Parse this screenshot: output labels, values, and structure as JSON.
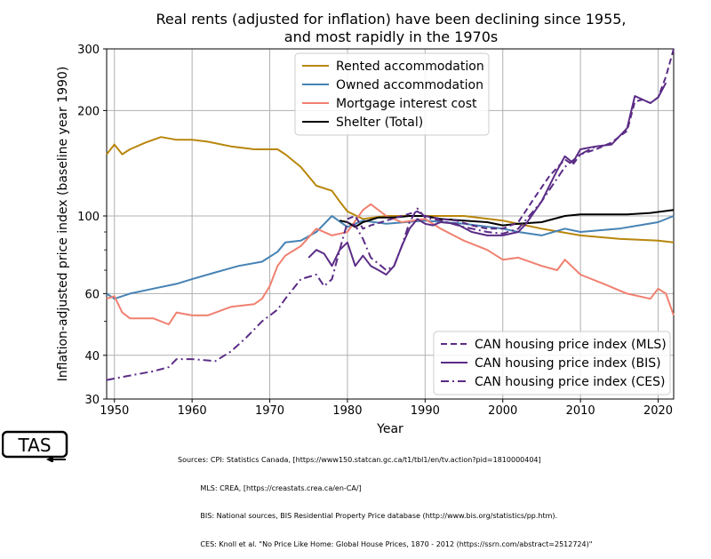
{
  "title_line1": "Real rents (adjusted for inflation) have been declining since 1955,",
  "title_line2": "and most rapidly in the 1970s",
  "logo_text": "TAS",
  "sources": [
    "Sources: CPI: Statistics Canada, [https://www150.statcan.gc.ca/t1/tbl1/en/tv.action?pid=1810000404]",
    "          MLS: CREA, [https://creastats.crea.ca/en-CA/]",
    "          BIS: National sources, BIS Residential Property Price database (http://www.bis.org/statistics/pp.htm).",
    "          CES: Knoll et al. \"No Price Like Home: Global House Prices, 1870 - 2012 (https://ssrn.com/abstract=2512724)\""
  ],
  "chart_data": {
    "type": "line",
    "xlabel": "Year",
    "ylabel": "Inflation-adjusted price index (baseline year 1990)",
    "xlim": [
      1949,
      2022
    ],
    "ylim": [
      30,
      300
    ],
    "yscale": "log",
    "xticks": [
      1950,
      1960,
      1970,
      1980,
      1990,
      2000,
      2010,
      2020
    ],
    "yticks": [
      30,
      40,
      60,
      100,
      200,
      300
    ],
    "grid": true,
    "legend_top": "top-center",
    "legend_bottom": "bottom-right",
    "series": [
      {
        "name": "Rented accommodation",
        "color": "#b8860b",
        "style": "solid",
        "legend": "top",
        "x": [
          1949,
          1950,
          1951,
          1952,
          1954,
          1956,
          1958,
          1960,
          1962,
          1965,
          1968,
          1971,
          1972,
          1974,
          1976,
          1978,
          1979,
          1980,
          1982,
          1985,
          1990,
          1995,
          2000,
          2005,
          2010,
          2015,
          2020,
          2022
        ],
        "y": [
          150,
          160,
          150,
          155,
          162,
          168,
          165,
          165,
          163,
          158,
          155,
          155,
          150,
          138,
          122,
          118,
          110,
          103,
          98,
          100,
          100,
          100,
          97,
          92,
          88,
          86,
          85,
          84
        ]
      },
      {
        "name": "Owned accommodation",
        "color": "#4682b4",
        "style": "solid",
        "legend": "top",
        "x": [
          1949,
          1950,
          1952,
          1955,
          1958,
          1960,
          1963,
          1966,
          1969,
          1971,
          1972,
          1974,
          1976,
          1978,
          1980,
          1982,
          1985,
          1990,
          1995,
          2000,
          2002,
          2005,
          2008,
          2010,
          2015,
          2020,
          2022
        ],
        "y": [
          60,
          58,
          60,
          62,
          64,
          66,
          69,
          72,
          74,
          79,
          84,
          85,
          90,
          100,
          93,
          97,
          95,
          97,
          95,
          92,
          90,
          88,
          92,
          90,
          92,
          96,
          100
        ]
      },
      {
        "name": "Mortgage interest cost",
        "color": "#f08070",
        "style": "solid",
        "legend": "top",
        "x": [
          1949,
          1950,
          1951,
          1952,
          1955,
          1957,
          1958,
          1960,
          1962,
          1965,
          1968,
          1969,
          1970,
          1971,
          1972,
          1974,
          1976,
          1978,
          1980,
          1982,
          1983,
          1985,
          1987,
          1990,
          1992,
          1995,
          1998,
          2000,
          2002,
          2005,
          2007,
          2008,
          2010,
          2013,
          2016,
          2019,
          2020,
          2021,
          2022
        ],
        "y": [
          58,
          59,
          53,
          51,
          51,
          49,
          53,
          52,
          52,
          55,
          56,
          58,
          63,
          72,
          77,
          82,
          92,
          88,
          90,
          104,
          108,
          100,
          96,
          98,
          92,
          85,
          80,
          75,
          76,
          72,
          70,
          75,
          68,
          64,
          60,
          58,
          62,
          60,
          52
        ]
      },
      {
        "name": "Shelter (Total)",
        "color": "#000000",
        "style": "solid",
        "legend": "top",
        "x": [
          1979,
          1980,
          1981,
          1982,
          1984,
          1986,
          1988,
          1990,
          1992,
          1995,
          1998,
          2000,
          2002,
          2005,
          2008,
          2010,
          2013,
          2016,
          2019,
          2022
        ],
        "y": [
          97,
          96,
          93,
          96,
          99,
          99,
          100,
          100,
          98,
          97,
          96,
          94,
          95,
          96,
          100,
          101,
          101,
          101,
          102,
          104
        ]
      },
      {
        "name": "CAN housing price index (MLS)",
        "color": "#5b2c86",
        "style": "dashed",
        "legend": "bottom",
        "x": [
          1980,
          1981,
          1982,
          1983,
          1985,
          1987,
          1989,
          1990,
          1992,
          1994,
          1996,
          1998,
          2000,
          2002,
          2004,
          2006,
          2008,
          2009,
          2010,
          2012,
          2014,
          2016,
          2017,
          2018,
          2019,
          2020,
          2021,
          2022
        ],
        "y": [
          98,
          100,
          92,
          94,
          97,
          100,
          103,
          100,
          98,
          97,
          94,
          92,
          92,
          96,
          112,
          130,
          145,
          140,
          150,
          155,
          162,
          175,
          212,
          215,
          210,
          218,
          250,
          300
        ]
      },
      {
        "name": "CAN housing price index (BIS)",
        "color": "#5b2c86",
        "style": "solid",
        "legend": "bottom",
        "x": [
          1975,
          1976,
          1977,
          1978,
          1979,
          1980,
          1981,
          1982,
          1983,
          1984,
          1985,
          1986,
          1987,
          1988,
          1989,
          1990,
          1991,
          1992,
          1994,
          1996,
          1998,
          2000,
          2002,
          2003,
          2005,
          2007,
          2008,
          2009,
          2010,
          2012,
          2014,
          2016,
          2017,
          2018,
          2019,
          2020,
          2021
        ],
        "y": [
          76,
          80,
          78,
          72,
          80,
          84,
          72,
          77,
          72,
          70,
          68,
          72,
          82,
          92,
          98,
          95,
          94,
          96,
          95,
          90,
          88,
          88,
          90,
          95,
          110,
          135,
          148,
          142,
          155,
          158,
          160,
          178,
          220,
          215,
          210,
          218,
          240
        ]
      },
      {
        "name": "CAN housing price index (CES)",
        "color": "#5b2c86",
        "style": "dashdot",
        "legend": "bottom",
        "x": [
          1949,
          1952,
          1955,
          1957,
          1958,
          1960,
          1963,
          1965,
          1967,
          1969,
          1971,
          1972,
          1974,
          1976,
          1977,
          1978,
          1979,
          1980,
          1981,
          1982,
          1983,
          1984,
          1985,
          1986,
          1987,
          1988,
          1989,
          1990,
          1992,
          1995,
          1998,
          2000,
          2002,
          2005,
          2008,
          2010,
          2012
        ],
        "y": [
          34,
          35,
          36,
          37,
          39,
          39,
          38.5,
          41,
          45,
          50,
          54,
          58,
          66,
          68,
          63,
          66,
          80,
          96,
          94,
          86,
          76,
          73,
          70,
          72,
          82,
          96,
          105,
          99,
          97,
          93,
          90,
          89,
          92,
          110,
          138,
          150,
          158
        ]
      }
    ]
  }
}
